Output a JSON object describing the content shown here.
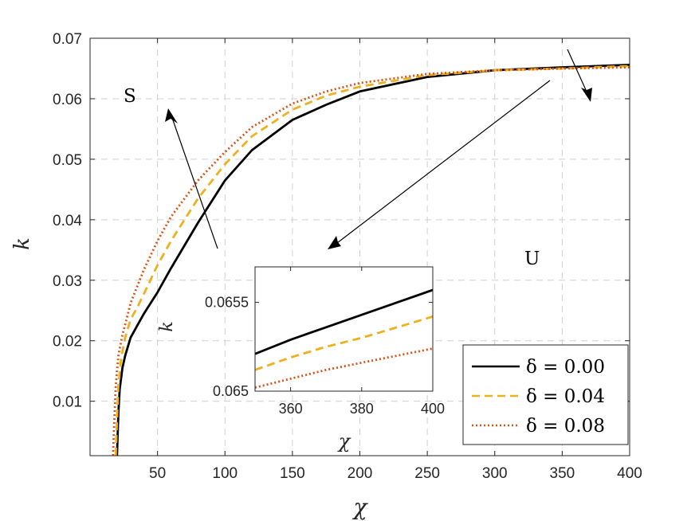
{
  "chart_data": {
    "type": "line",
    "xlabel": "χ",
    "ylabel": "k",
    "xlim": [
      0,
      400
    ],
    "ylim": [
      0.001,
      0.07
    ],
    "xticks": [
      50,
      100,
      150,
      200,
      250,
      300,
      350,
      400
    ],
    "yticks": [
      0.01,
      0.02,
      0.03,
      0.04,
      0.05,
      0.06,
      0.07
    ],
    "xtick_labels": [
      "50",
      "100",
      "150",
      "200",
      "250",
      "300",
      "350",
      "400"
    ],
    "ytick_labels": [
      "0.01",
      "0.02",
      "0.03",
      "0.04",
      "0.05",
      "0.06",
      "0.07"
    ],
    "grid": true,
    "legend_position": "bottom-right",
    "series": [
      {
        "name": "δ = 0.00",
        "color": "#000000",
        "style": "solid",
        "x": [
          20,
          21,
          22,
          24,
          26,
          30,
          35,
          40,
          50,
          60,
          80,
          100,
          120,
          150,
          175,
          200,
          250,
          300,
          350,
          400
        ],
        "y": [
          0.001,
          0.008,
          0.012,
          0.0155,
          0.0175,
          0.0205,
          0.0225,
          0.0245,
          0.028,
          0.032,
          0.0395,
          0.0465,
          0.0515,
          0.0565,
          0.059,
          0.0612,
          0.0636,
          0.0647,
          0.0652,
          0.0656
        ]
      },
      {
        "name": "δ = 0.04",
        "color": "#EDB120",
        "style": "dashed",
        "x": [
          19,
          20,
          21,
          23,
          26,
          30,
          35,
          40,
          50,
          60,
          80,
          100,
          120,
          150,
          175,
          200,
          250,
          300,
          350,
          400
        ],
        "y": [
          0.001,
          0.007,
          0.0125,
          0.017,
          0.0205,
          0.0235,
          0.0255,
          0.0278,
          0.0325,
          0.0365,
          0.0435,
          0.0492,
          0.0538,
          0.0582,
          0.0605,
          0.062,
          0.0639,
          0.0647,
          0.065,
          0.0654
        ]
      },
      {
        "name": "δ = 0.08",
        "color": "#D95319",
        "style": "dotted",
        "x": [
          17,
          18,
          19,
          21,
          24,
          27,
          30,
          35,
          40,
          50,
          60,
          80,
          100,
          120,
          150,
          175,
          200,
          250,
          300,
          350,
          400
        ],
        "y": [
          0.001,
          0.007,
          0.0125,
          0.0175,
          0.021,
          0.0235,
          0.0262,
          0.029,
          0.0318,
          0.0365,
          0.0405,
          0.0465,
          0.0512,
          0.0553,
          0.0592,
          0.0612,
          0.0626,
          0.0641,
          0.0647,
          0.065,
          0.0652
        ]
      }
    ],
    "annotations": [
      {
        "text": "S"
      },
      {
        "text": "U"
      }
    ],
    "inset": {
      "xlabel": "χ",
      "ylabel": "k",
      "xlim": [
        350,
        400
      ],
      "ylim": [
        0.065,
        0.0657
      ],
      "xticks": [
        360,
        380,
        400
      ],
      "yticks": [
        0.065,
        0.0655
      ],
      "xtick_labels": [
        "360",
        "380",
        "400"
      ],
      "ytick_labels": [
        "0.065",
        "0.0655"
      ],
      "series": [
        {
          "name": "δ = 0.00",
          "x": [
            350,
            360,
            370,
            380,
            390,
            400
          ],
          "y": [
            0.06521,
            0.06529,
            0.06536,
            0.06543,
            0.0655,
            0.06557
          ]
        },
        {
          "name": "δ = 0.04",
          "x": [
            350,
            360,
            370,
            380,
            390,
            400
          ],
          "y": [
            0.06512,
            0.06519,
            0.06525,
            0.0653,
            0.06536,
            0.06542
          ]
        },
        {
          "name": "δ = 0.08",
          "x": [
            350,
            360,
            370,
            380,
            390,
            400
          ],
          "y": [
            0.06502,
            0.06507,
            0.06512,
            0.06516,
            0.0652,
            0.06524
          ]
        }
      ]
    }
  }
}
